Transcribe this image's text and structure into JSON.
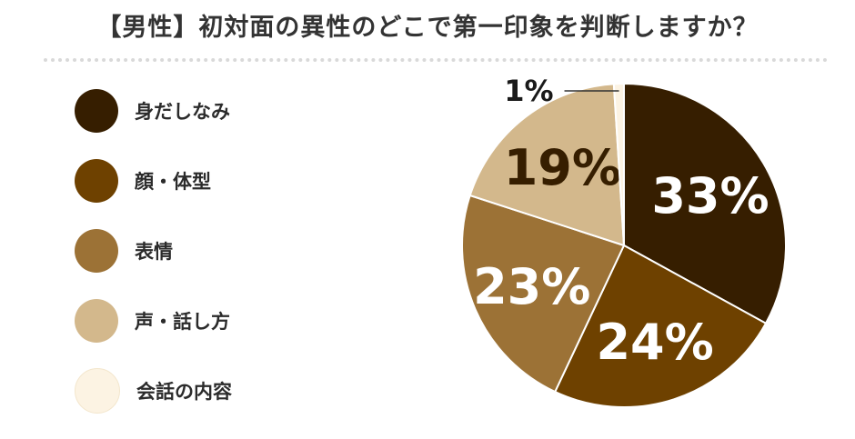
{
  "title": "【男性】初対面の異性のどこで第一印象を判断しますか？",
  "chart_data": {
    "type": "pie",
    "title": "【男性】初対面の異性のどこで第一印象を判断しますか？",
    "legend_position": "left",
    "slices": [
      {
        "label": "身だしなみ",
        "value": 33,
        "display": "33%",
        "color": "#361e00",
        "label_color": "#ffffff"
      },
      {
        "label": "顔・体型",
        "value": 24,
        "display": "24%",
        "color": "#6e4100",
        "label_color": "#ffffff"
      },
      {
        "label": "表情",
        "value": 23,
        "display": "23%",
        "color": "#9c7236",
        "label_color": "#ffffff"
      },
      {
        "label": "声・話し方",
        "value": 19,
        "display": "19%",
        "color": "#d3b88c",
        "label_color": "#361e00"
      },
      {
        "label": "会話の内容",
        "value": 1,
        "display": "1%",
        "color": "#fcf3e3",
        "label_color": "#1a1a1a"
      }
    ]
  }
}
